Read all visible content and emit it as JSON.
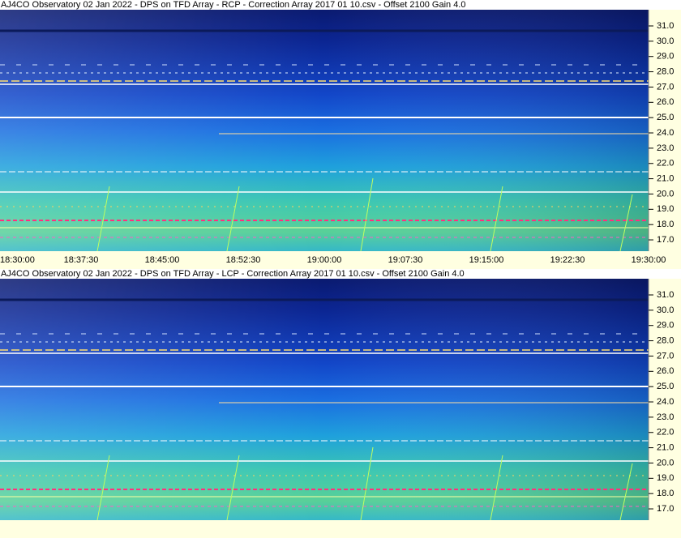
{
  "panels": [
    {
      "title": "AJ4CO Observatory 02 Jan 2022  -  DPS on TFD Array  -  RCP  -  Correction Array 2017 01 10.csv  -  Offset 2100  Gain 4.0",
      "y_ticks": [
        "31.0",
        "30.0",
        "29.0",
        "28.0",
        "27.0",
        "26.0",
        "25.0",
        "24.0",
        "23.0",
        "22.0",
        "21.0",
        "20.0",
        "19.0",
        "18.0",
        "17.0"
      ]
    },
    {
      "title": "AJ4CO Observatory 02 Jan 2022  -  DPS on TFD Array  -  LCP  -  Correction Array 2017 01 10.csv  -  Offset 2100  Gain 4.0",
      "y_ticks": [
        "31.0",
        "30.0",
        "29.0",
        "28.0",
        "27.0",
        "26.0",
        "25.0",
        "24.0",
        "23.0",
        "22.0",
        "21.0",
        "20.0",
        "19.0",
        "18.0",
        "17.0"
      ]
    }
  ],
  "x_ticks": [
    "18:30:00",
    "18:37:30",
    "18:45:00",
    "18:52:30",
    "19:00:00",
    "19:07:30",
    "19:15:00",
    "19:22:30",
    "19:30:00"
  ]
}
